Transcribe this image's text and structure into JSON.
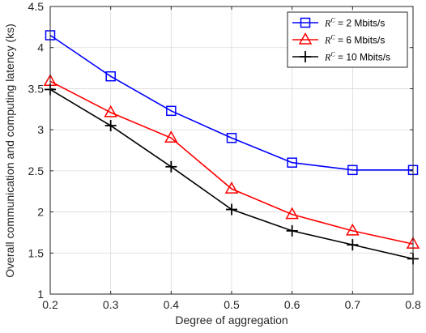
{
  "chart_data": {
    "type": "line",
    "x": [
      0.2,
      0.3,
      0.4,
      0.5,
      0.6,
      0.7,
      0.8
    ],
    "xticks": [
      "0.2",
      "0.3",
      "0.4",
      "0.5",
      "0.6",
      "0.7",
      "0.8"
    ],
    "yticks": [
      "1",
      "1.5",
      "2",
      "2.5",
      "3",
      "3.5",
      "4",
      "4.5"
    ],
    "xlim": [
      0.2,
      0.8
    ],
    "ylim": [
      1,
      4.5
    ],
    "xlabel": "Degree of aggregation",
    "ylabel": "Overall communication and computing latency (ks)",
    "grid": true,
    "legend_position": "top-right",
    "series": [
      {
        "name": "R^C = 2 Mbits/s",
        "legend_r": "R",
        "legend_sup": "C",
        "legend_rest": " = 2 Mbits/s",
        "color": "#0000ff",
        "marker": "square",
        "values": [
          4.15,
          3.65,
          3.23,
          2.9,
          2.6,
          2.51,
          2.51
        ]
      },
      {
        "name": "R^C = 6 Mbits/s",
        "legend_r": "R",
        "legend_sup": "C",
        "legend_rest": " = 6 Mbits/s",
        "color": "#ff0000",
        "marker": "triangle",
        "values": [
          3.59,
          3.21,
          2.9,
          2.28,
          1.97,
          1.77,
          1.61
        ]
      },
      {
        "name": "R^C = 10 Mbits/s",
        "legend_r": "R",
        "legend_sup": "C",
        "legend_rest": " = 10 Mbits/s",
        "color": "#000000",
        "marker": "plus",
        "values": [
          3.49,
          3.05,
          2.55,
          2.03,
          1.77,
          1.6,
          1.43
        ]
      }
    ]
  }
}
